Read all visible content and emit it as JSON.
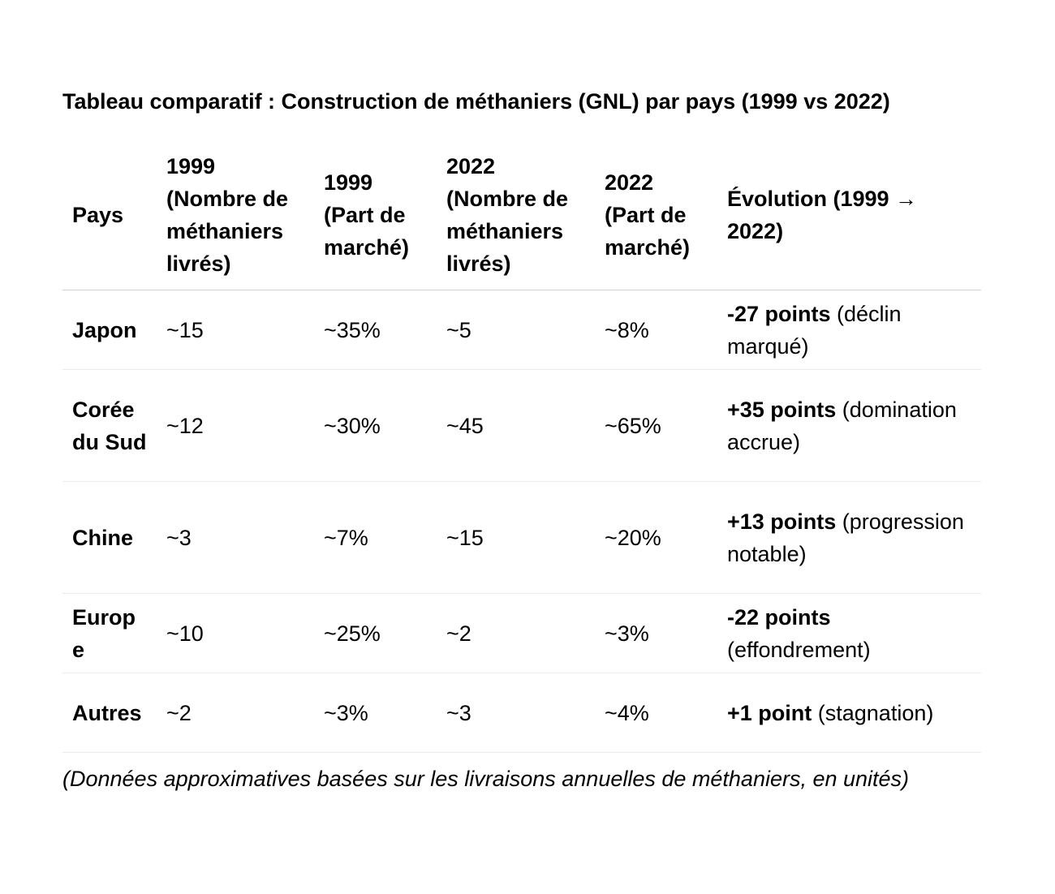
{
  "title": "Tableau comparatif : Construction de méthaniers (GNL) par pays (1999 vs 2022)",
  "table": {
    "headers": [
      "Pays",
      "1999 (Nombre de méthaniers livrés)",
      "1999 (Part de marché)",
      "2022 (Nombre de méthaniers livrés)",
      "2022 (Part de marché)",
      "Évolution (1999 → 2022)"
    ],
    "rows": [
      {
        "pays": "Japon",
        "n1999": "~15",
        "p1999": "~35%",
        "n2022": "~5",
        "p2022": "~8%",
        "evolution_bold": "-27 points",
        "evolution_text": " (déclin marqué)"
      },
      {
        "pays": "Corée du Sud",
        "n1999": "~12",
        "p1999": "~30%",
        "n2022": "~45",
        "p2022": "~65%",
        "evolution_bold": "+35 points",
        "evolution_text": " (domination accrue)"
      },
      {
        "pays": "Chine",
        "n1999": "~3",
        "p1999": "~7%",
        "n2022": "~15",
        "p2022": "~20%",
        "evolution_bold": "+13 points",
        "evolution_text": " (progression notable)"
      },
      {
        "pays": "Europe",
        "n1999": "~10",
        "p1999": "~25%",
        "n2022": "~2",
        "p2022": "~3%",
        "evolution_bold": "-22 points",
        "evolution_text": " (effondrement)"
      },
      {
        "pays": "Autres",
        "n1999": "~2",
        "p1999": "~3%",
        "n2022": "~3",
        "p2022": "~4%",
        "evolution_bold": "+1 point",
        "evolution_text": " (stagnation)"
      }
    ]
  },
  "note": "(Données approximatives basées sur les livraisons annuelles de méthaniers, en unités)"
}
